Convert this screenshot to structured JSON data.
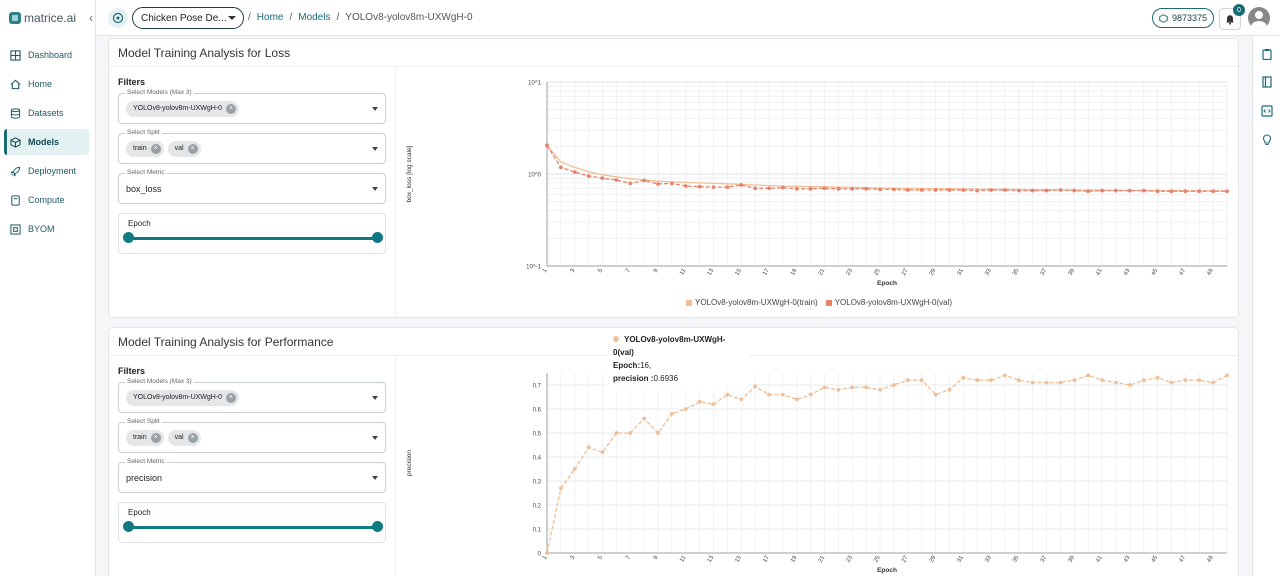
{
  "brand": {
    "name": "matrice.ai",
    "collapse_glyph": "‹"
  },
  "nav": [
    {
      "label": "Dashboard",
      "icon": "grid-icon",
      "active": false
    },
    {
      "label": "Home",
      "icon": "home-icon",
      "active": false
    },
    {
      "label": "Datasets",
      "icon": "database-icon",
      "active": false
    },
    {
      "label": "Models",
      "icon": "cube-icon",
      "active": true
    },
    {
      "label": "Deployment",
      "icon": "rocket-icon",
      "active": false
    },
    {
      "label": "Compute",
      "icon": "server-icon",
      "active": false
    },
    {
      "label": "BYOM",
      "icon": "box-icon",
      "active": false
    }
  ],
  "topbar": {
    "project": "Chicken Pose De...",
    "breadcrumb": [
      "Home",
      "Models",
      "YOLOv8-yolov8m-UXWgH-0"
    ],
    "credits": "9873375",
    "notifications": "0"
  },
  "panels": {
    "loss": {
      "title": "Model Training Analysis for Loss",
      "filters_title": "Filters",
      "models_label": "Select Models (Max 3)",
      "models": [
        "YOLOv8-yolov8m-UXWgH-0"
      ],
      "split_label": "Select Split",
      "splits": [
        "train",
        "val"
      ],
      "metric_label": "Select Metric",
      "metric": "box_loss",
      "epoch_label": "Epoch",
      "epoch_range": [
        0,
        1
      ]
    },
    "perf": {
      "title": "Model Training Analysis for Performance",
      "filters_title": "Filters",
      "models_label": "Select Models (Max 3)",
      "models": [
        "YOLOv8-yolov8m-UXWgH-0"
      ],
      "split_label": "Select Split",
      "splits": [
        "train",
        "val"
      ],
      "metric_label": "Select Metric",
      "metric": "precision",
      "epoch_label": "Epoch",
      "epoch_range": [
        0,
        1
      ]
    }
  },
  "tooltip": {
    "series": "YOLOv8-yolov8m-UXWgH-0(val)",
    "epoch_label": "Epoch:",
    "epoch": "16,",
    "value_label": "precision :",
    "value": "0.6936"
  },
  "chart_data": [
    {
      "type": "line",
      "ylabel": "box_loss [log scale]",
      "xlabel": "Epoch",
      "yscale": "log",
      "ylim": [
        0.1,
        10
      ],
      "ytick_labels": [
        "10^1",
        "10^0",
        "10^-1"
      ],
      "x": [
        1,
        2,
        3,
        4,
        5,
        6,
        7,
        8,
        9,
        10,
        11,
        12,
        13,
        14,
        15,
        16,
        17,
        18,
        19,
        20,
        21,
        22,
        23,
        24,
        25,
        26,
        27,
        28,
        29,
        30,
        31,
        32,
        33,
        34,
        35,
        36,
        37,
        38,
        39,
        40,
        41,
        42,
        43,
        44,
        45,
        46,
        47,
        48,
        49,
        50
      ],
      "xtick_labels": [
        "1",
        "3",
        "5",
        "7",
        "9",
        "11",
        "13",
        "15",
        "17",
        "19",
        "21",
        "23",
        "25",
        "27",
        "29",
        "31",
        "33",
        "35",
        "37",
        "39",
        "41",
        "43",
        "45",
        "47",
        "49"
      ],
      "grid": true,
      "legend_position": "bottom",
      "series": [
        {
          "name": "YOLOv8-yolov8m-UXWgH-0(train)",
          "color": "#f0bf97",
          "dashed": false,
          "values": [
            2.05,
            1.35,
            1.18,
            1.06,
            0.98,
            0.93,
            0.89,
            0.86,
            0.84,
            0.82,
            0.81,
            0.8,
            0.79,
            0.78,
            0.77,
            0.76,
            0.75,
            0.74,
            0.735,
            0.73,
            0.725,
            0.72,
            0.715,
            0.71,
            0.705,
            0.7,
            0.698,
            0.695,
            0.692,
            0.69,
            0.688,
            0.685,
            0.682,
            0.68,
            0.678,
            0.676,
            0.674,
            0.672,
            0.67,
            0.668,
            0.666,
            0.664,
            0.662,
            0.66,
            0.659,
            0.658,
            0.657,
            0.656,
            0.655,
            0.654
          ]
        },
        {
          "name": "YOLOv8-yolov8m-UXWgH-0(val)",
          "color": "#e8826b",
          "dashed": true,
          "values": [
            2.05,
            1.18,
            1.05,
            0.95,
            0.9,
            0.86,
            0.79,
            0.85,
            0.78,
            0.79,
            0.74,
            0.73,
            0.72,
            0.72,
            0.76,
            0.7,
            0.7,
            0.71,
            0.69,
            0.69,
            0.7,
            0.69,
            0.69,
            0.69,
            0.68,
            0.68,
            0.67,
            0.67,
            0.67,
            0.67,
            0.67,
            0.66,
            0.67,
            0.67,
            0.66,
            0.66,
            0.66,
            0.67,
            0.66,
            0.65,
            0.66,
            0.66,
            0.66,
            0.66,
            0.65,
            0.65,
            0.65,
            0.65,
            0.65,
            0.65
          ]
        }
      ]
    },
    {
      "type": "line",
      "ylabel": "precision",
      "xlabel": "Epoch",
      "ylim": [
        0,
        0.75
      ],
      "yticks": [
        0,
        0.1,
        0.2,
        0.3,
        0.4,
        0.5,
        0.6,
        0.7
      ],
      "ytick_labels": [
        "0",
        "0.1",
        "0.2",
        "0.3",
        "0.4",
        "0.5",
        "0.6",
        "0.7"
      ],
      "x": [
        1,
        2,
        3,
        4,
        5,
        6,
        7,
        8,
        9,
        10,
        11,
        12,
        13,
        14,
        15,
        16,
        17,
        18,
        19,
        20,
        21,
        22,
        23,
        24,
        25,
        26,
        27,
        28,
        29,
        30,
        31,
        32,
        33,
        34,
        35,
        36,
        37,
        38,
        39,
        40,
        41,
        42,
        43,
        44,
        45,
        46,
        47,
        48,
        49,
        50
      ],
      "xtick_labels": [
        "1",
        "3",
        "5",
        "7",
        "9",
        "11",
        "13",
        "15",
        "17",
        "19",
        "21",
        "23",
        "25",
        "27",
        "29",
        "31",
        "33",
        "35",
        "37",
        "39",
        "41",
        "43",
        "45",
        "47",
        "49"
      ],
      "grid": true,
      "series": [
        {
          "name": "YOLOv8-yolov8m-UXWgH-0(val)",
          "color": "#f0bf97",
          "dashed": true,
          "values": [
            0.0,
            0.27,
            0.35,
            0.44,
            0.42,
            0.5,
            0.5,
            0.56,
            0.5,
            0.58,
            0.6,
            0.63,
            0.62,
            0.66,
            0.64,
            0.6936,
            0.66,
            0.66,
            0.64,
            0.66,
            0.69,
            0.68,
            0.69,
            0.69,
            0.68,
            0.7,
            0.72,
            0.72,
            0.66,
            0.68,
            0.73,
            0.72,
            0.72,
            0.74,
            0.72,
            0.71,
            0.71,
            0.71,
            0.72,
            0.74,
            0.72,
            0.71,
            0.7,
            0.72,
            0.73,
            0.71,
            0.72,
            0.72,
            0.71,
            0.74
          ]
        }
      ]
    }
  ]
}
